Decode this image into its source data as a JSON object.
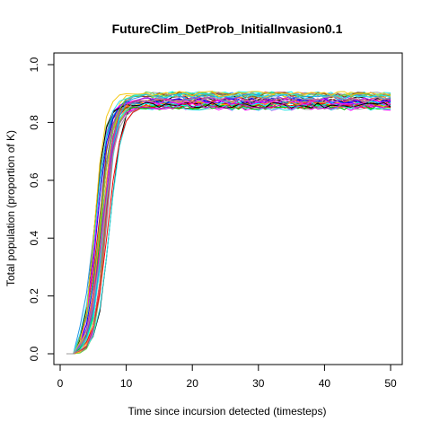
{
  "chart_data": {
    "type": "line",
    "title": "FutureClim_DetProb_InitialInvasion0.1",
    "xlabel": "Time since incursion detected (timesteps)",
    "ylabel": "Total population (proportion of K)",
    "xlim": [
      0,
      50
    ],
    "ylim": [
      0,
      1.0
    ],
    "xticks": [
      "0",
      "10",
      "20",
      "30",
      "40",
      "50"
    ],
    "yticks": [
      "0.0",
      "0.2",
      "0.4",
      "0.6",
      "0.8",
      "1.0"
    ],
    "grid": false,
    "legend": "none",
    "n_series": 40,
    "x_start": 1,
    "x_end": 50,
    "plateau_range": [
      0.84,
      0.9
    ],
    "rise_window": [
      3,
      12
    ],
    "colors": [
      "#000000",
      "#DF536B",
      "#61D04F",
      "#2297E6",
      "#28E2E5",
      "#CD0BBC",
      "#F5C710",
      "#9E9E9E",
      "#FF0000",
      "#0000FF",
      "#00CD00",
      "#A020F0",
      "#FFA500",
      "#00FFFF",
      "#FF00FF",
      "#8B4513"
    ]
  }
}
